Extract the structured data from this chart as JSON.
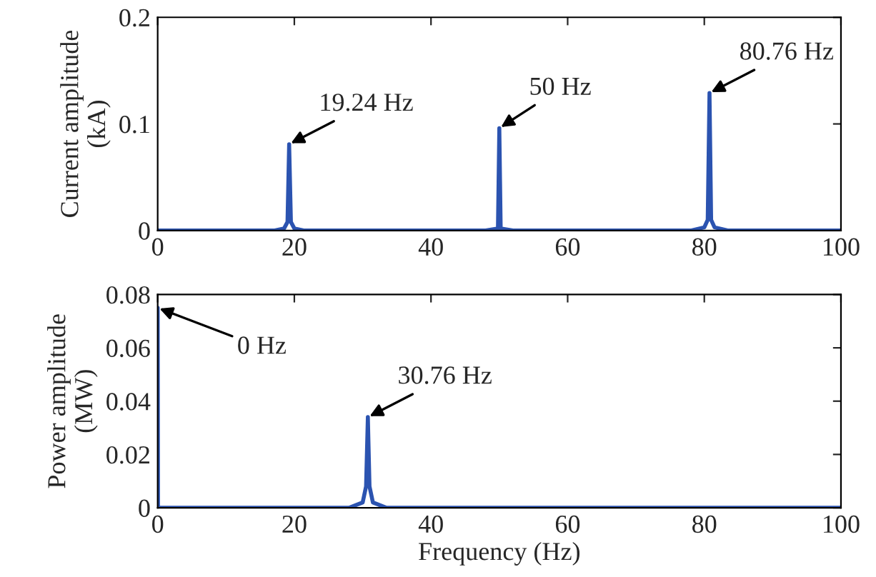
{
  "chart_data": [
    {
      "type": "line",
      "ylabel": "Current amplitude\n(kA)",
      "xlim": [
        0,
        100
      ],
      "xticks": [
        0,
        20,
        40,
        60,
        80,
        100
      ],
      "ylim": [
        0,
        0.2
      ],
      "yticks": [
        0,
        0.1,
        0.2
      ],
      "grid": false,
      "legend": false,
      "series": [
        {
          "color": "#2b53b0",
          "x": [
            0,
            17,
            18.5,
            19,
            19.24,
            19.5,
            20,
            21.5,
            48,
            49.8,
            50,
            50.2,
            52,
            78,
            80,
            80.5,
            80.76,
            81,
            81.5,
            83.5,
            100
          ],
          "values": [
            0,
            0,
            0.002,
            0.008,
            0.081,
            0.008,
            0.002,
            0,
            0,
            0.002,
            0.096,
            0.002,
            0,
            0,
            0.003,
            0.01,
            0.129,
            0.01,
            0.003,
            0,
            0
          ]
        }
      ],
      "annotations": [
        {
          "text": "19.24 Hz",
          "x": 19.24,
          "y": 0.081
        },
        {
          "text": "50 Hz",
          "x": 50,
          "y": 0.096
        },
        {
          "text": "80.76 Hz",
          "x": 80.76,
          "y": 0.129
        }
      ]
    },
    {
      "type": "line",
      "xlabel": "Frequency (Hz)",
      "ylabel": "Power amplitude\n(MW)",
      "xlim": [
        0,
        100
      ],
      "xticks": [
        0,
        20,
        40,
        60,
        80,
        100
      ],
      "ylim": [
        0,
        0.08
      ],
      "yticks": [
        0,
        0.02,
        0.04,
        0.06,
        0.08
      ],
      "grid": false,
      "legend": false,
      "series": [
        {
          "color": "#2b53b0",
          "x": [
            0,
            0.05,
            28,
            30,
            30.5,
            30.76,
            31,
            31.5,
            33.5,
            100
          ],
          "values": [
            0.075,
            0,
            0,
            0.002,
            0.008,
            0.034,
            0.008,
            0.002,
            0,
            0
          ]
        }
      ],
      "annotations": [
        {
          "text": "0 Hz",
          "x": 0,
          "y": 0.075
        },
        {
          "text": "30.76 Hz",
          "x": 30.76,
          "y": 0.034
        }
      ]
    }
  ]
}
